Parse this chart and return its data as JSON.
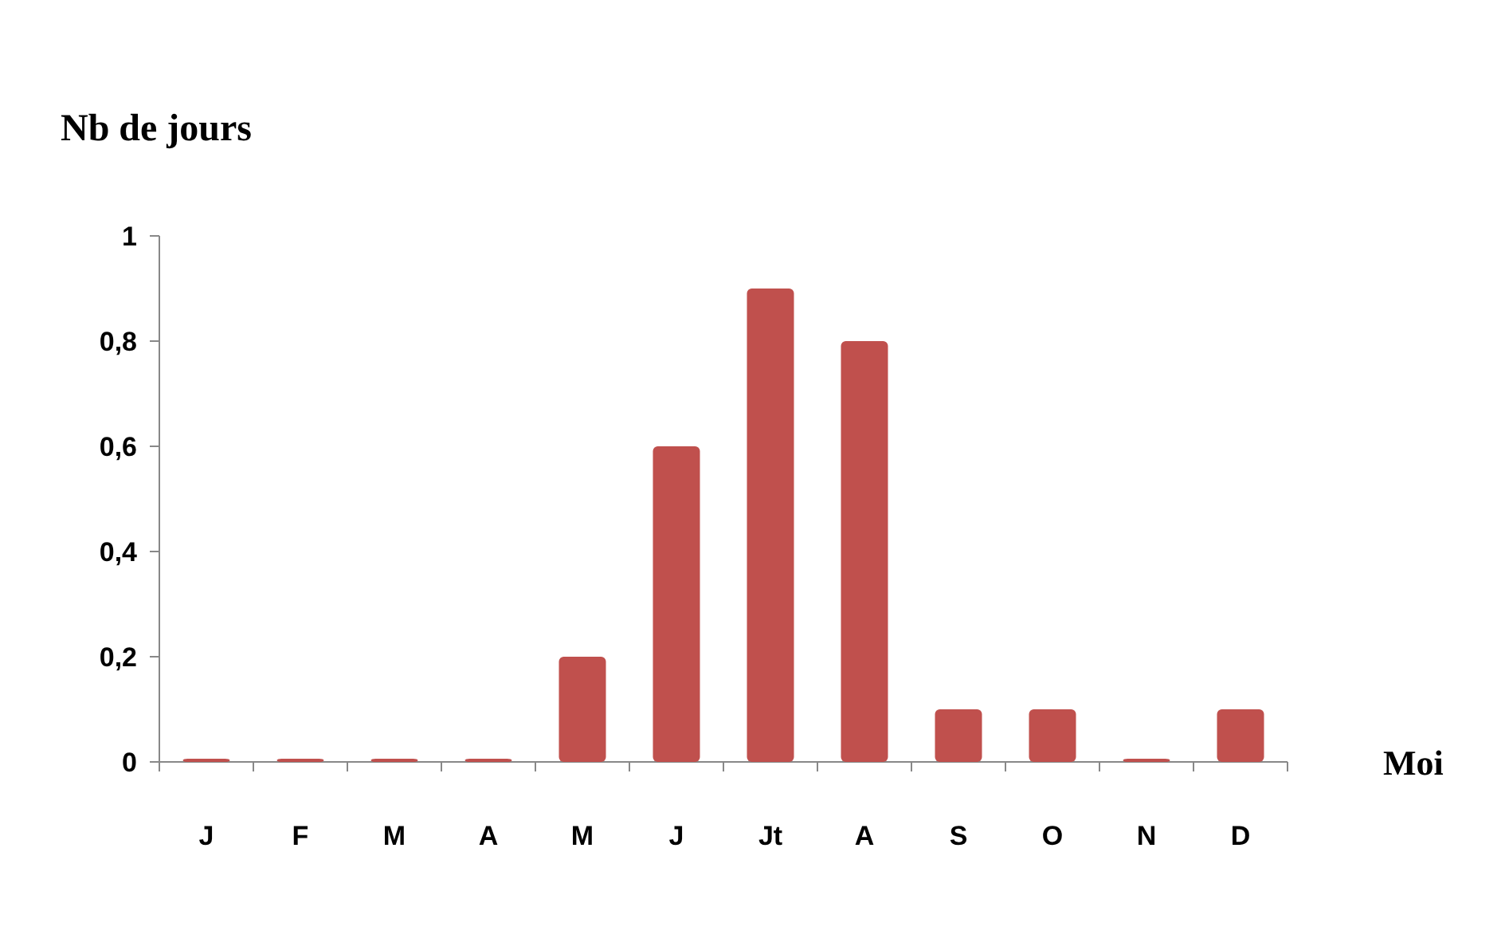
{
  "chart_data": {
    "type": "bar",
    "ylabel": "Nb de jours",
    "xlabel": "Moi",
    "categories": [
      "J",
      "F",
      "M",
      "A",
      "M",
      "J",
      "Jt",
      "A",
      "S",
      "O",
      "N",
      "D"
    ],
    "values": [
      0,
      0,
      0,
      0,
      0.2,
      0.6,
      0.9,
      0.8,
      0.1,
      0.1,
      0,
      0.1
    ],
    "color": "#c0504d",
    "ylim": [
      0,
      1
    ],
    "yticks": [
      0,
      {
        "value": 0.2,
        "label": "0,2"
      },
      {
        "value": 0.4,
        "label": "0,4"
      },
      {
        "value": 0.6,
        "label": "0,6"
      },
      {
        "value": 0.8,
        "label": "0,8"
      },
      1
    ],
    "grid": false
  }
}
